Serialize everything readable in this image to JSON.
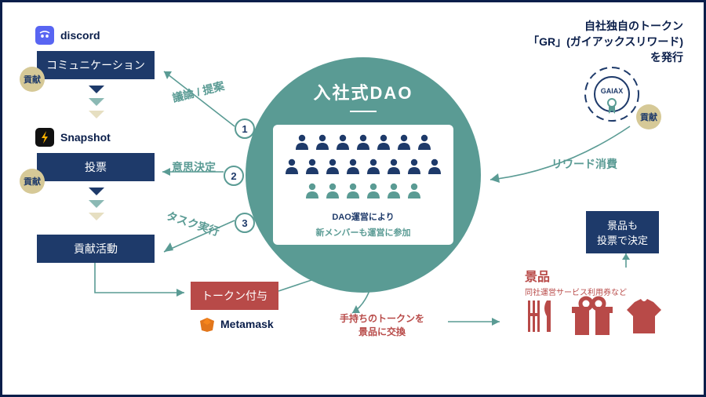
{
  "diagram_type": "flowchart-infographic",
  "colors": {
    "navy": "#1e3a6a",
    "teal": "#5a9b94",
    "red": "#b84a48",
    "beige": "#d6c997",
    "white": "#ffffff",
    "border": "#0a1e4a"
  },
  "left": {
    "tool1": "discord",
    "box1": "コミュニケーション",
    "tool2": "Snapshot",
    "box2": "投票",
    "box3": "貢献活動",
    "badge": "貢献"
  },
  "center": {
    "title": "入社式DAO",
    "sub1": "DAO運営により",
    "sub2": "新メンバーも運営に参加",
    "rows": [
      7,
      8,
      6
    ],
    "row_colors": [
      "#1e3a6a",
      "#1e3a6a",
      "#5a9b94"
    ]
  },
  "arrows": {
    "a1": "議論 / 提案",
    "a2": "意思決定",
    "a3": "タスク実行",
    "n1": "1",
    "n2": "2",
    "n3": "3"
  },
  "bottom": {
    "token_box": "トークン付与",
    "tool3": "Metamask",
    "exchange1": "手持ちのトークンを",
    "exchange2": "景品に交換"
  },
  "right": {
    "header1": "自社独自のトークン",
    "header2": "「GR」(ガイアックスリワード)",
    "header3": "を発行",
    "gaiax": "GAIAX",
    "badge": "貢献",
    "reward_label": "リワード消費",
    "vote_box1": "景品も",
    "vote_box2": "投票で決定",
    "prize_title": "景品",
    "prize_sub": "同社運営サービス利用券など"
  }
}
